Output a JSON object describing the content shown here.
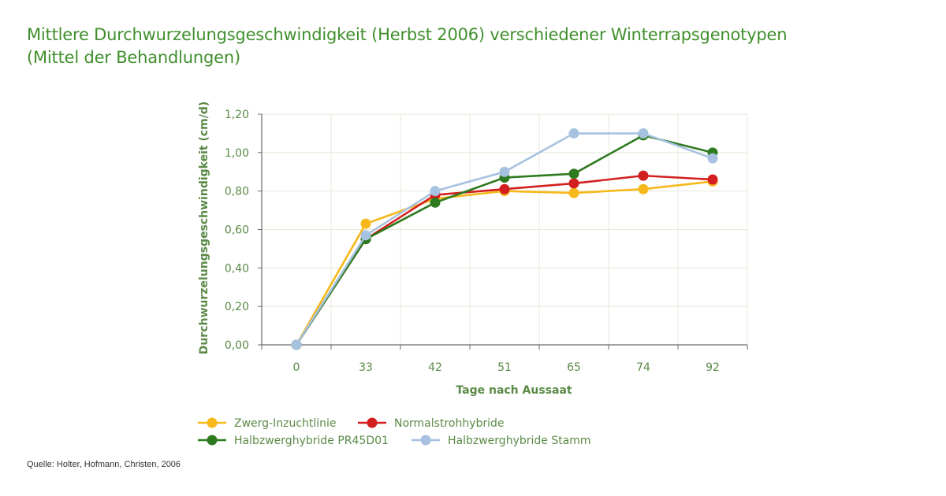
{
  "title_line1": "Mittlere Durchwurzelungsgeschwindigkeit (Herbst 2006) verschiedener Winterrapsgenotypen",
  "title_line2": "(Mittel der Behandlungen)",
  "source": "Quelle: Holter, Hofmann, Christen, 2006",
  "colors": {
    "title": "#3f8f2c",
    "axis_text": "#5a8a46",
    "grid": "#e5ead9",
    "axis": "#6a6a6a"
  },
  "chart_data": {
    "type": "line",
    "xlabel": "Tage nach Aussaat",
    "ylabel": "Durchwurzelungsgeschwindigkeit (cm/d)",
    "categories": [
      "0",
      "33",
      "42",
      "51",
      "65",
      "74",
      "92"
    ],
    "ylim": [
      0,
      1.2
    ],
    "yticks": [
      "0,00",
      "0,20",
      "0,40",
      "0,60",
      "0,80",
      "1,00",
      "1,20"
    ],
    "ytick_values": [
      0,
      0.2,
      0.4,
      0.6,
      0.8,
      1.0,
      1.2
    ],
    "grid": true,
    "legend_position": "bottom",
    "series": [
      {
        "name": "Zwerg-Inzuchtlinie",
        "color": "#f6b81a",
        "values": [
          0.0,
          0.63,
          0.76,
          0.8,
          0.79,
          0.81,
          0.85
        ]
      },
      {
        "name": "Normalstrohhybride",
        "color": "#d31f1f",
        "values": [
          0.0,
          0.55,
          0.78,
          0.81,
          0.84,
          0.88,
          0.86
        ]
      },
      {
        "name": "Halbzwerghybride PR45D01",
        "color": "#2e7a1e",
        "values": [
          0.0,
          0.55,
          0.74,
          0.87,
          0.89,
          1.09,
          1.0
        ]
      },
      {
        "name": "Halbzwerghybride Stamm",
        "color": "#a7c2e0",
        "values": [
          0.0,
          0.57,
          0.8,
          0.9,
          1.1,
          1.1,
          0.97
        ]
      }
    ]
  }
}
